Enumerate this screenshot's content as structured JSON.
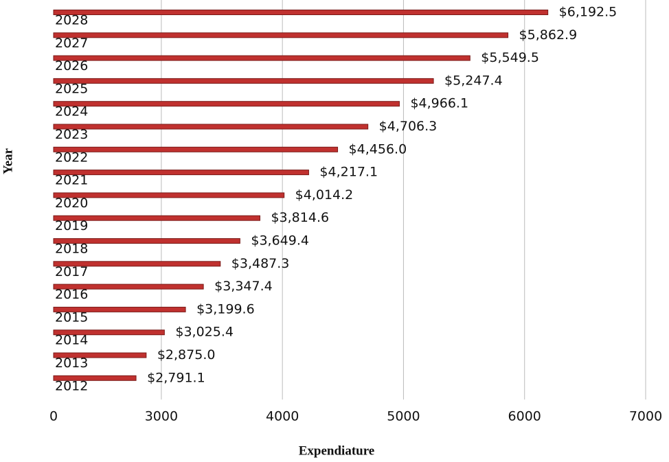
{
  "chart_data": {
    "type": "barh",
    "xlabel": "Expendiature",
    "ylabel": "Year",
    "categories": [
      "2028",
      "2027",
      "2026",
      "2025",
      "2024",
      "2023",
      "2022",
      "2021",
      "2020",
      "2019",
      "2018",
      "2017",
      "2016",
      "2015",
      "2014",
      "2013",
      "2012"
    ],
    "values": [
      6192.5,
      5862.9,
      5549.5,
      5247.4,
      4966.1,
      4706.3,
      4456.0,
      4217.1,
      4014.2,
      3814.6,
      3649.4,
      3487.3,
      3347.4,
      3199.6,
      3025.4,
      2875.0,
      2791.1
    ],
    "value_labels": [
      "$6,192.5",
      "$5,862.9",
      "$5,549.5",
      "$5,247.4",
      "$4,966.1",
      "$4,706.3",
      "$4,456.0",
      "$4,217.1",
      "$4,014.2",
      "$3,814.6",
      "$3,649.4",
      "$3,487.3",
      "$3,347.4",
      "$3,199.6",
      "$3,025.4",
      "$2,875.0",
      "$2,791.1"
    ],
    "color": "#c0312f",
    "xlim": [
      2110,
      7000
    ],
    "xticks": [
      {
        "value": 2110,
        "label": "0"
      },
      3000,
      4000,
      5000,
      6000,
      7000
    ],
    "grid": true
  }
}
